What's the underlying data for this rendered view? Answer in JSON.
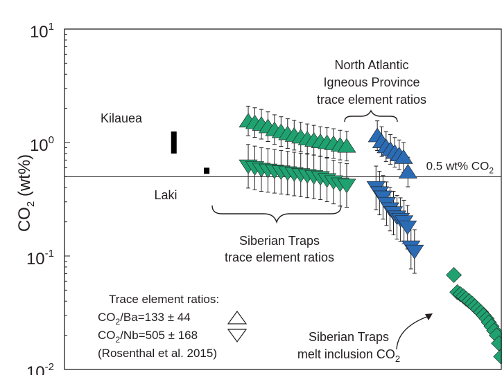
{
  "chart_data": {
    "type": "scatter",
    "y_scale": "log",
    "ylim": [
      0.01,
      10
    ],
    "xlim": [
      0,
      1
    ],
    "yticks": [
      {
        "value": 10,
        "base": "10",
        "exp": "1"
      },
      {
        "value": 1,
        "base": "10",
        "exp": "0"
      },
      {
        "value": 0.1,
        "base": "10",
        "exp": "-1"
      },
      {
        "value": 0.01,
        "base": "10",
        "exp": "-2"
      }
    ],
    "ylabel": {
      "pre": "CO",
      "sub": "2",
      "post": " (wt%)"
    },
    "xlabel": "",
    "grid": false,
    "reference_line": {
      "value": 0.5,
      "label_pre": "0.5 wt% CO",
      "label_sub": "2"
    },
    "series": [
      {
        "name": "Kilauea",
        "kind": "bar",
        "x": 0.25,
        "low": 0.8,
        "high": 1.25,
        "color": "#000000"
      },
      {
        "name": "Laki",
        "kind": "bar",
        "x": 0.325,
        "low": 0.53,
        "high": 0.6,
        "color": "#000000"
      },
      {
        "name": "Siberian Traps CO2/Ba",
        "kind": "up",
        "color": "#1fa270",
        "x": [
          0.42,
          0.435,
          0.45,
          0.465,
          0.48,
          0.495,
          0.51,
          0.525,
          0.54,
          0.555,
          0.57,
          0.585,
          0.6,
          0.615,
          0.63,
          0.645
        ],
        "y": [
          1.55,
          1.5,
          1.45,
          1.38,
          1.3,
          1.25,
          1.2,
          1.16,
          1.12,
          1.08,
          1.05,
          1.02,
          1.0,
          0.98,
          0.95,
          0.93
        ],
        "err_hi": 1.35,
        "err_lo": 0.74
      },
      {
        "name": "Siberian Traps CO2/Nb",
        "kind": "down",
        "color": "#1fa270",
        "x": [
          0.42,
          0.435,
          0.45,
          0.465,
          0.48,
          0.495,
          0.51,
          0.525,
          0.54,
          0.555,
          0.57,
          0.585,
          0.6,
          0.615,
          0.63,
          0.645
        ],
        "y": [
          0.62,
          0.6,
          0.58,
          0.57,
          0.56,
          0.55,
          0.54,
          0.53,
          0.52,
          0.51,
          0.5,
          0.49,
          0.47,
          0.45,
          0.43,
          0.42
        ],
        "err_hi": 1.55,
        "err_lo": 0.64
      },
      {
        "name": "North Atlantic CO2/Ba",
        "kind": "up",
        "color": "#2b6cb5",
        "x": [
          0.715,
          0.725,
          0.735,
          0.745,
          0.755,
          0.765,
          0.775,
          0.785
        ],
        "y": [
          1.15,
          1.02,
          0.92,
          0.87,
          0.82,
          0.78,
          0.74,
          0.55
        ],
        "err_hi": 1.35,
        "err_lo": 0.74
      },
      {
        "name": "North Atlantic CO2/Nb",
        "kind": "down",
        "color": "#2b6cb5",
        "x": [
          0.712,
          0.72,
          0.728,
          0.736,
          0.744,
          0.752,
          0.76,
          0.768,
          0.776,
          0.784,
          0.792,
          0.8
        ],
        "y": [
          0.4,
          0.36,
          0.33,
          0.29,
          0.26,
          0.24,
          0.22,
          0.21,
          0.2,
          0.18,
          0.12,
          0.11
        ],
        "err_hi": 1.55,
        "err_lo": 0.64
      },
      {
        "name": "Siberian Traps melt inclusion CO2",
        "kind": "diamond",
        "color": "#1fa270",
        "x": [
          0.89,
          0.898,
          0.905,
          0.912,
          0.918,
          0.925,
          0.932,
          0.938,
          0.945,
          0.952,
          0.958,
          0.965,
          0.97,
          0.976,
          0.982,
          0.988,
          0.993,
          0.998
        ],
        "y": [
          0.068,
          0.048,
          0.046,
          0.044,
          0.042,
          0.04,
          0.038,
          0.036,
          0.034,
          0.032,
          0.03,
          0.028,
          0.026,
          0.024,
          0.022,
          0.02,
          0.017,
          0.013
        ]
      }
    ],
    "annotations": {
      "kilauea": "Kilauea",
      "laki": "Laki",
      "nat_line1": "North Atlantic",
      "nat_line2": "Igneous Province",
      "nat_line3": "trace element ratios",
      "st_line1": "Siberian Traps",
      "st_line2": "trace element ratios",
      "mi_line1": "Siberian Traps",
      "mi_line2_pre": "melt inclusion CO",
      "mi_line2_sub": "2",
      "legend_title": "Trace element ratios:",
      "legend_ba_pre": "CO",
      "legend_ba_sub": "2",
      "legend_ba_post": "/Ba=133 ± 44",
      "legend_nb_pre": "CO",
      "legend_nb_sub": "2",
      "legend_nb_post": "/Nb=505 ± 168",
      "legend_ref": "(Rosenthal et al. 2015)"
    }
  }
}
